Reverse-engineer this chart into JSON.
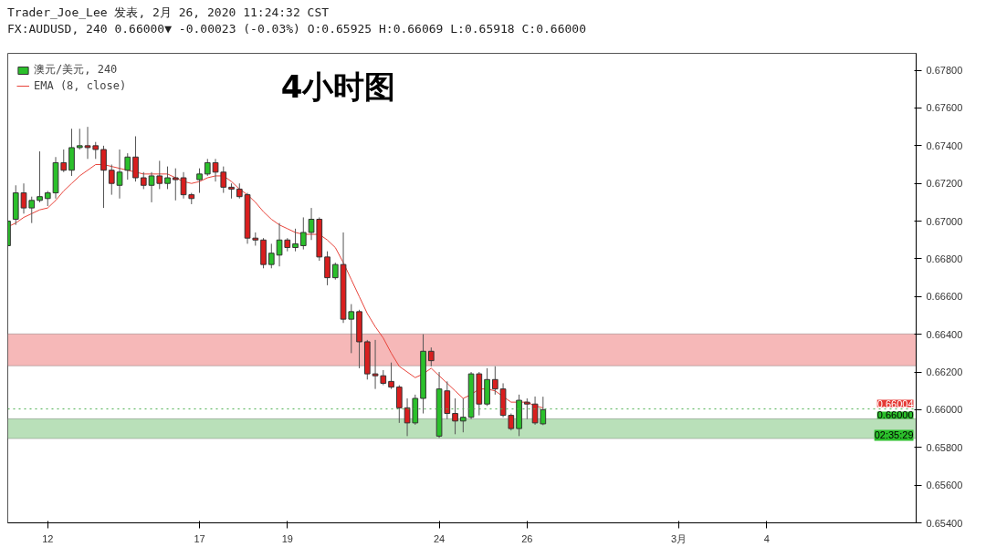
{
  "chart_data": {
    "type": "candlestick",
    "title": "4小时图",
    "legend": "top left",
    "categories": [
      null,
      null,
      null,
      null,
      null,
      "12",
      null,
      null,
      null,
      null,
      null,
      null,
      null,
      null,
      null,
      null,
      null,
      null,
      null,
      null,
      null,
      null,
      null,
      null,
      "17",
      null,
      null,
      null,
      null,
      null,
      null,
      null,
      null,
      null,
      null,
      "19",
      null,
      null,
      null,
      null,
      null,
      null,
      null,
      null,
      null,
      null,
      null,
      null,
      null,
      null,
      null,
      null,
      null,
      null,
      "24",
      null,
      null,
      null,
      null,
      null,
      null,
      null,
      null,
      null,
      null,
      "26",
      null,
      null,
      null,
      null,
      null,
      null,
      null,
      null,
      null,
      null,
      null,
      null,
      null,
      null,
      null,
      null,
      null,
      null,
      "3月",
      null,
      null,
      null,
      null,
      null,
      null,
      null,
      null,
      null,
      null,
      "4",
      null,
      null,
      null,
      null,
      null,
      null,
      null,
      null,
      null,
      null,
      null,
      null,
      null,
      null,
      null,
      null,
      null,
      null
    ],
    "ylim": [
      0.654,
      0.6789
    ],
    "yticks": [
      {
        "value": 0.654,
        "label": "0.65400"
      },
      {
        "value": 0.656,
        "label": "0.65600"
      },
      {
        "value": 0.658,
        "label": "0.65800"
      },
      {
        "value": 0.66,
        "label": "0.66000"
      },
      {
        "value": 0.662,
        "label": "0.66200"
      },
      {
        "value": 0.664,
        "label": "0.66400"
      },
      {
        "value": 0.666,
        "label": "0.66600"
      },
      {
        "value": 0.668,
        "label": "0.66800"
      },
      {
        "value": 0.67,
        "label": "0.67000"
      },
      {
        "value": 0.672,
        "label": "0.67200"
      },
      {
        "value": 0.674,
        "label": "0.67400"
      },
      {
        "value": 0.676,
        "label": "0.67600"
      },
      {
        "value": 0.678,
        "label": "0.67800"
      }
    ],
    "series": [
      {
        "name": "澳元/美元, 240",
        "ohlc": [
          [
            0.6687,
            0.6702,
            0.6684,
            0.67
          ],
          [
            0.6701,
            0.6719,
            0.6698,
            0.6715
          ],
          [
            0.6715,
            0.672,
            0.6704,
            0.6707
          ],
          [
            0.6707,
            0.6713,
            0.6699,
            0.6711
          ],
          [
            0.6711,
            0.6737,
            0.671,
            0.6713
          ],
          [
            0.6712,
            0.6716,
            0.6708,
            0.6715
          ],
          [
            0.6715,
            0.6734,
            0.6712,
            0.6731
          ],
          [
            0.6731,
            0.6738,
            0.6726,
            0.6727
          ],
          [
            0.6727,
            0.6749,
            0.6724,
            0.6739
          ],
          [
            0.6739,
            0.6749,
            0.6738,
            0.674
          ],
          [
            0.674,
            0.675,
            0.6733,
            0.6739
          ],
          [
            0.674,
            0.6742,
            0.6733,
            0.6738
          ],
          [
            0.6738,
            0.674,
            0.6707,
            0.6727
          ],
          [
            0.6727,
            0.673,
            0.6714,
            0.672
          ],
          [
            0.6719,
            0.6738,
            0.6712,
            0.6726
          ],
          [
            0.6727,
            0.6736,
            0.6722,
            0.6734
          ],
          [
            0.6734,
            0.6745,
            0.6721,
            0.6723
          ],
          [
            0.6723,
            0.6726,
            0.6717,
            0.6719
          ],
          [
            0.6719,
            0.6726,
            0.671,
            0.6724
          ],
          [
            0.6724,
            0.6732,
            0.6717,
            0.672
          ],
          [
            0.672,
            0.6729,
            0.6717,
            0.6723
          ],
          [
            0.6723,
            0.6728,
            0.6711,
            0.6722
          ],
          [
            0.6723,
            0.6726,
            0.6712,
            0.6714
          ],
          [
            0.6714,
            0.6715,
            0.6709,
            0.6712
          ],
          [
            0.6722,
            0.6728,
            0.6715,
            0.6725
          ],
          [
            0.6725,
            0.6733,
            0.6724,
            0.6731
          ],
          [
            0.6731,
            0.6733,
            0.6721,
            0.6726
          ],
          [
            0.6726,
            0.6729,
            0.6715,
            0.6718
          ],
          [
            0.6718,
            0.672,
            0.6712,
            0.6717
          ],
          [
            0.6717,
            0.672,
            0.6712,
            0.6713
          ],
          [
            0.6714,
            0.6715,
            0.6688,
            0.6691
          ],
          [
            0.6691,
            0.6694,
            0.6687,
            0.669
          ],
          [
            0.669,
            0.6691,
            0.6675,
            0.6677
          ],
          [
            0.6677,
            0.6688,
            0.6675,
            0.6683
          ],
          [
            0.6682,
            0.6699,
            0.6676,
            0.669
          ],
          [
            0.669,
            0.6691,
            0.6684,
            0.6686
          ],
          [
            0.6686,
            0.6696,
            0.6684,
            0.6688
          ],
          [
            0.6687,
            0.6702,
            0.6685,
            0.6694
          ],
          [
            0.6694,
            0.6707,
            0.669,
            0.6701
          ],
          [
            0.6701,
            0.6702,
            0.6679,
            0.6681
          ],
          [
            0.6681,
            0.6684,
            0.6666,
            0.667
          ],
          [
            0.667,
            0.6678,
            0.6669,
            0.6677
          ],
          [
            0.6677,
            0.6694,
            0.6646,
            0.6648
          ],
          [
            0.6648,
            0.6656,
            0.663,
            0.6652
          ],
          [
            0.6652,
            0.6653,
            0.6622,
            0.6636
          ],
          [
            0.6636,
            0.6637,
            0.6616,
            0.6619
          ],
          [
            0.6619,
            0.6637,
            0.6611,
            0.6618
          ],
          [
            0.6618,
            0.6621,
            0.6613,
            0.6614
          ],
          [
            0.6615,
            0.6625,
            0.6611,
            0.6612
          ],
          [
            0.6612,
            0.6613,
            0.6593,
            0.6601
          ],
          [
            0.6601,
            0.6606,
            0.6586,
            0.6593
          ],
          [
            0.6593,
            0.6608,
            0.6592,
            0.6606
          ],
          [
            0.6606,
            0.664,
            0.6598,
            0.6631
          ],
          [
            0.6631,
            0.6633,
            0.6623,
            0.6626
          ],
          [
            0.6586,
            0.662,
            0.6585,
            0.6611
          ],
          [
            0.661,
            0.6615,
            0.6595,
            0.6598
          ],
          [
            0.6598,
            0.6606,
            0.6587,
            0.6594
          ],
          [
            0.6594,
            0.6606,
            0.6588,
            0.6596
          ],
          [
            0.6596,
            0.662,
            0.6595,
            0.6619
          ],
          [
            0.6619,
            0.662,
            0.6597,
            0.6603
          ],
          [
            0.6603,
            0.6622,
            0.6602,
            0.6616
          ],
          [
            0.6616,
            0.6623,
            0.6608,
            0.6611
          ],
          [
            0.6611,
            0.6614,
            0.6596,
            0.6597
          ],
          [
            0.6597,
            0.6598,
            0.6589,
            0.659
          ],
          [
            0.659,
            0.6608,
            0.6586,
            0.6605
          ],
          [
            0.6604,
            0.6606,
            0.6595,
            0.6603
          ],
          [
            0.6603,
            0.6607,
            0.6592,
            0.6593
          ],
          [
            0.65925,
            0.66069,
            0.65918,
            0.66
          ],
          null,
          null,
          null,
          null,
          null,
          null,
          null,
          null,
          null,
          null,
          null,
          null,
          null,
          null,
          null,
          null,
          null,
          null,
          null,
          null,
          null,
          null,
          null,
          null,
          null,
          null,
          null,
          null,
          null,
          null,
          null,
          null,
          null,
          null,
          null,
          null,
          null,
          null,
          null,
          null,
          null,
          null,
          null,
          null,
          null,
          null
        ],
        "colors": [
          "#2bc02b",
          "#2bc02b",
          "#d91e1e",
          "#2bc02b",
          "#2bc02b",
          "#2bc02b",
          "#2bc02b",
          "#d91e1e",
          "#2bc02b",
          "#2bc02b",
          "#d91e1e",
          "#d91e1e",
          "#d91e1e",
          "#d91e1e",
          "#2bc02b",
          "#2bc02b",
          "#d91e1e",
          "#d91e1e",
          "#2bc02b",
          "#d91e1e",
          "#2bc02b",
          "#d91e1e",
          "#d91e1e",
          "#d91e1e",
          "#2bc02b",
          "#2bc02b",
          "#d91e1e",
          "#d91e1e",
          "#d91e1e",
          "#d91e1e",
          "#d91e1e",
          "#d91e1e",
          "#d91e1e",
          "#2bc02b",
          "#2bc02b",
          "#d91e1e",
          "#2bc02b",
          "#2bc02b",
          "#2bc02b",
          "#d91e1e",
          "#d91e1e",
          "#2bc02b",
          "#d91e1e",
          "#2bc02b",
          "#d91e1e",
          "#d91e1e",
          "#d91e1e",
          "#d91e1e",
          "#d91e1e",
          "#d91e1e",
          "#d91e1e",
          "#2bc02b",
          "#2bc02b",
          "#d91e1e",
          "#2bc02b",
          "#d91e1e",
          "#d91e1e",
          "#2bc02b",
          "#2bc02b",
          "#d91e1e",
          "#2bc02b",
          "#d91e1e",
          "#d91e1e",
          "#d91e1e",
          "#2bc02b",
          "#d91e1e",
          "#d91e1e",
          "#2bc02b",
          null,
          null,
          null,
          null,
          null,
          null,
          null,
          null,
          null,
          null,
          null,
          null,
          null,
          null,
          null,
          null,
          null,
          null,
          null,
          null,
          null,
          null,
          null,
          null,
          null,
          null,
          null,
          null,
          null,
          null,
          null,
          null,
          null,
          null,
          null,
          null,
          null,
          null,
          null,
          null,
          null,
          null,
          null,
          null,
          null,
          null
        ]
      },
      {
        "name": "EMA (8, close)",
        "type": "line",
        "color": "#e8433a",
        "values": [
          0.6697,
          0.6699,
          0.6702,
          0.6704,
          0.6706,
          0.6707,
          0.6711,
          0.6716,
          0.672,
          0.6724,
          0.6727,
          0.673,
          0.673,
          0.6729,
          0.6728,
          0.6727,
          0.6726,
          0.6725,
          0.6725,
          0.6725,
          0.6725,
          0.6723,
          0.6721,
          0.672,
          0.6721,
          0.6723,
          0.6724,
          0.6724,
          0.6721,
          0.6717,
          0.6714,
          0.671,
          0.6705,
          0.6701,
          0.6698,
          0.6696,
          0.6694,
          0.6693,
          0.6693,
          0.6693,
          0.669,
          0.6686,
          0.6678,
          0.6669,
          0.666,
          0.6651,
          0.6644,
          0.6638,
          0.663,
          0.6623,
          0.662,
          0.6617,
          0.6619,
          0.6622,
          0.6618,
          0.6614,
          0.661,
          0.6606,
          0.6608,
          0.6611,
          0.6611,
          0.661,
          0.6607,
          0.6604,
          0.6604,
          0.6604,
          0.6602,
          0.6601,
          null,
          null,
          null,
          null,
          null,
          null,
          null,
          null,
          null,
          null,
          null,
          null,
          null,
          null,
          null,
          null,
          null,
          null,
          null,
          null,
          null,
          null,
          null,
          null,
          null,
          null,
          null,
          null,
          null,
          null,
          null,
          null,
          null,
          null,
          null,
          null,
          null,
          null,
          null,
          null,
          null,
          null,
          null,
          null,
          null,
          null
        ]
      }
    ],
    "bands": [
      {
        "axis": "y",
        "from": 0.66233,
        "to": 0.66402,
        "color": "#f4a6a6"
      },
      {
        "axis": "y",
        "from": 0.65847,
        "to": 0.65952,
        "color": "#a8d8a8"
      }
    ],
    "ref_lines": [
      {
        "axis": "y",
        "value": 0.66004,
        "label": "0.66004",
        "color": "#4caf50",
        "line_style": "dotted"
      }
    ],
    "annotations": [
      "Trader_Joe_Lee 发表, 2月 26, 2020 11:24:32 CST",
      "FX:AUDUSD, 240 0.66000▼ -0.00023 (-0.03%) O:0.65925 H:0.66069 L:0.65918 C:0.66000",
      {
        "text": "0.66000",
        "y": 0.66
      },
      "02:35:29"
    ]
  }
}
